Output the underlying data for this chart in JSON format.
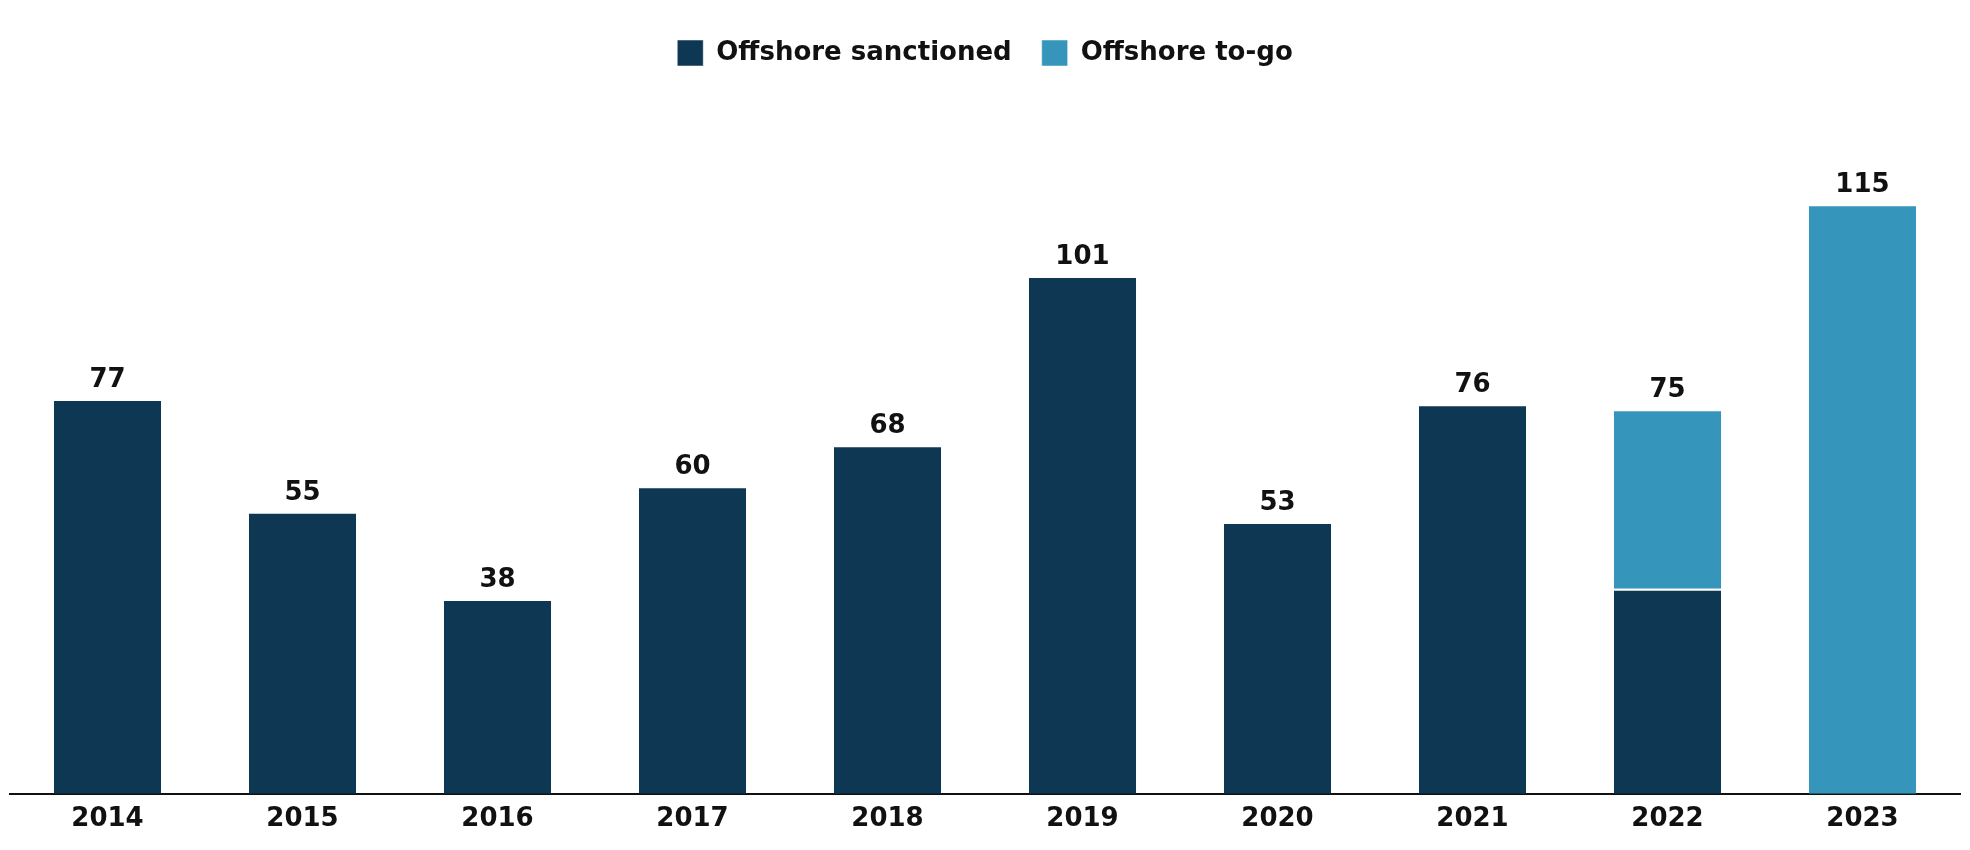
{
  "chart_data": {
    "type": "bar",
    "stacked": true,
    "categories": [
      "2014",
      "2015",
      "2016",
      "2017",
      "2018",
      "2019",
      "2020",
      "2021",
      "2022",
      "2023"
    ],
    "series": [
      {
        "name": "Offshore sanctioned",
        "color": "#0e3754",
        "values": [
          77,
          55,
          38,
          60,
          68,
          101,
          53,
          76,
          40,
          null
        ],
        "value_labels": [
          "77",
          "55",
          "38",
          "60",
          "68",
          "101",
          "53",
          "76",
          null,
          null
        ]
      },
      {
        "name": "Offshore to-go",
        "color": "#3595bb",
        "values": [
          null,
          null,
          null,
          null,
          null,
          null,
          null,
          null,
          35,
          115
        ],
        "value_labels": [
          null,
          null,
          null,
          null,
          null,
          null,
          null,
          null,
          null,
          "115"
        ]
      }
    ],
    "totals": [
      null,
      null,
      null,
      null,
      null,
      null,
      null,
      null,
      "75",
      null
    ],
    "legend": "top",
    "grid": false
  }
}
